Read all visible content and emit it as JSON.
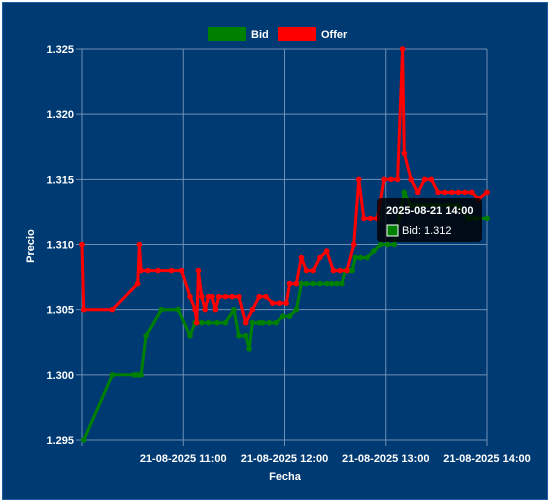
{
  "chart_data": {
    "type": "line",
    "xlabel": "Fecha",
    "ylabel": "Precio",
    "ylim": [
      1.295,
      1.325
    ],
    "y_ticks": [
      "1.295",
      "1.300",
      "1.305",
      "1.310",
      "1.315",
      "1.320",
      "1.325"
    ],
    "x_ticks": [
      {
        "t": 660,
        "label": "21-08-2025 11:00"
      },
      {
        "t": 720,
        "label": "21-08-2025 12:00"
      },
      {
        "t": 780,
        "label": "21-08-2025 13:00"
      },
      {
        "t": 840,
        "label": "21-08-2025 14:00"
      }
    ],
    "legend": {
      "position": "top-center"
    },
    "grid": true,
    "series": [
      {
        "name": "Bid",
        "color": "#008000",
        "points": [
          [
            601,
            1.295
          ],
          [
            618,
            1.3
          ],
          [
            631,
            1.3
          ],
          [
            633,
            1.3
          ],
          [
            635,
            1.3
          ],
          [
            638,
            1.303
          ],
          [
            647,
            1.305
          ],
          [
            657,
            1.305
          ],
          [
            664,
            1.303
          ],
          [
            667,
            1.304
          ],
          [
            671,
            1.304
          ],
          [
            675,
            1.304
          ],
          [
            680,
            1.304
          ],
          [
            685,
            1.304
          ],
          [
            690,
            1.305
          ],
          [
            693,
            1.303
          ],
          [
            697,
            1.303
          ],
          [
            699,
            1.302
          ],
          [
            701,
            1.304
          ],
          [
            705,
            1.304
          ],
          [
            707,
            1.304
          ],
          [
            711,
            1.304
          ],
          [
            715,
            1.304
          ],
          [
            719,
            1.3045
          ],
          [
            723,
            1.3045
          ],
          [
            727,
            1.305
          ],
          [
            730,
            1.307
          ],
          [
            733,
            1.307
          ],
          [
            737,
            1.307
          ],
          [
            741,
            1.307
          ],
          [
            745,
            1.307
          ],
          [
            748,
            1.307
          ],
          [
            751,
            1.307
          ],
          [
            754,
            1.307
          ],
          [
            756,
            1.308
          ],
          [
            758,
            1.308
          ],
          [
            760,
            1.308
          ],
          [
            762,
            1.309
          ],
          [
            765,
            1.309
          ],
          [
            769,
            1.309
          ],
          [
            773,
            1.3095
          ],
          [
            777,
            1.31
          ],
          [
            781,
            1.31
          ],
          [
            785,
            1.31
          ],
          [
            791,
            1.314
          ],
          [
            795,
            1.313
          ],
          [
            799,
            1.313
          ],
          [
            803,
            1.313
          ],
          [
            807,
            1.313
          ],
          [
            811,
            1.313
          ],
          [
            817,
            1.313
          ],
          [
            823,
            1.313
          ],
          [
            829,
            1.312
          ],
          [
            833,
            1.312
          ],
          [
            840,
            1.312
          ]
        ]
      },
      {
        "name": "Offer",
        "color": "#ff0000",
        "points": [
          [
            600,
            1.31
          ],
          [
            601,
            1.305
          ],
          [
            618,
            1.305
          ],
          [
            633,
            1.307
          ],
          [
            634,
            1.31
          ],
          [
            635,
            1.308
          ],
          [
            639,
            1.308
          ],
          [
            645,
            1.308
          ],
          [
            653,
            1.308
          ],
          [
            659,
            1.308
          ],
          [
            664,
            1.306
          ],
          [
            667,
            1.305
          ],
          [
            668,
            1.304
          ],
          [
            669,
            1.308
          ],
          [
            671,
            1.306
          ],
          [
            673,
            1.305
          ],
          [
            675,
            1.306
          ],
          [
            677,
            1.306
          ],
          [
            679,
            1.305
          ],
          [
            681,
            1.306
          ],
          [
            685,
            1.306
          ],
          [
            689,
            1.306
          ],
          [
            693,
            1.306
          ],
          [
            697,
            1.304
          ],
          [
            701,
            1.305
          ],
          [
            705,
            1.306
          ],
          [
            709,
            1.306
          ],
          [
            713,
            1.3055
          ],
          [
            717,
            1.3055
          ],
          [
            721,
            1.3055
          ],
          [
            723,
            1.307
          ],
          [
            727,
            1.307
          ],
          [
            730,
            1.309
          ],
          [
            733,
            1.308
          ],
          [
            737,
            1.308
          ],
          [
            741,
            1.309
          ],
          [
            745,
            1.3095
          ],
          [
            749,
            1.308
          ],
          [
            753,
            1.308
          ],
          [
            757,
            1.308
          ],
          [
            761,
            1.31
          ],
          [
            764,
            1.315
          ],
          [
            767,
            1.312
          ],
          [
            771,
            1.312
          ],
          [
            775,
            1.312
          ],
          [
            779,
            1.315
          ],
          [
            783,
            1.315
          ],
          [
            787,
            1.315
          ],
          [
            790,
            1.325
          ],
          [
            791,
            1.317
          ],
          [
            795,
            1.315
          ],
          [
            799,
            1.314
          ],
          [
            803,
            1.315
          ],
          [
            807,
            1.315
          ],
          [
            811,
            1.314
          ],
          [
            815,
            1.314
          ],
          [
            819,
            1.314
          ],
          [
            823,
            1.314
          ],
          [
            827,
            1.314
          ],
          [
            831,
            1.314
          ],
          [
            835,
            1.3135
          ],
          [
            840,
            1.314
          ]
        ]
      }
    ],
    "tooltip": {
      "title": "2025-08-21 14:00",
      "label": "Bid: 1.312",
      "color": "#008000"
    }
  }
}
